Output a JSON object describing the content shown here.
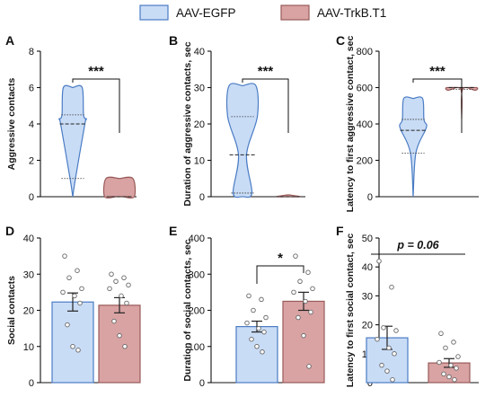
{
  "legend": [
    {
      "label": "AAV-EGFP",
      "fill": "#c9dcf6",
      "stroke": "#4a7cc4"
    },
    {
      "label": "AAV-TrkB.T1",
      "fill": "#d9a3a3",
      "stroke": "#9a5a5a"
    }
  ],
  "chart_data": [
    {
      "panel": "A",
      "type": "violin",
      "ylabel": "Aggressive contacts",
      "ylim": [
        0,
        8
      ],
      "yticks": [
        0,
        2,
        4,
        6,
        8
      ],
      "significance": "***",
      "series": [
        {
          "name": "AAV-EGFP",
          "min": 0,
          "q1": 1.0,
          "median": 4.0,
          "q3": 4.5,
          "max": 6.0
        },
        {
          "name": "AAV-TrkB.T1",
          "min": 0,
          "q1": 0,
          "median": 0,
          "q3": 0,
          "max": 1.0
        }
      ]
    },
    {
      "panel": "B",
      "type": "violin",
      "ylabel": "Duration of aggressive contacts, sec",
      "ylim": [
        0,
        40
      ],
      "yticks": [
        0,
        10,
        20,
        30,
        40
      ],
      "significance": "***",
      "series": [
        {
          "name": "AAV-EGFP",
          "min": 0,
          "q1": 1.0,
          "median": 11.5,
          "q3": 22.0,
          "max": 30.5
        },
        {
          "name": "AAV-TrkB.T1",
          "min": 0,
          "q1": 0,
          "median": 0,
          "q3": 0,
          "max": 0.5
        }
      ]
    },
    {
      "panel": "C",
      "type": "violin",
      "ylabel": "Latency to first aggressive contact, sec",
      "ylim": [
        0,
        800
      ],
      "yticks": [
        0,
        200,
        400,
        600,
        800
      ],
      "significance": "***",
      "series": [
        {
          "name": "AAV-EGFP",
          "min": 0,
          "q1": 240,
          "median": 365,
          "q3": 425,
          "max": 540
        },
        {
          "name": "AAV-TrkB.T1",
          "min": 430,
          "q1": 590,
          "median": 600,
          "q3": 600,
          "max": 600
        }
      ]
    },
    {
      "panel": "D",
      "type": "bar",
      "ylabel": "Social contacts",
      "ylim": [
        0,
        40
      ],
      "yticks": [
        0,
        10,
        20,
        30,
        40
      ],
      "series": [
        {
          "name": "AAV-EGFP",
          "mean": 22.3,
          "sem": 2.5,
          "points": [
            35,
            31,
            29,
            26,
            25,
            24,
            22,
            16,
            10,
            9
          ]
        },
        {
          "name": "AAV-TrkB.T1",
          "mean": 21.4,
          "sem": 2.1,
          "points": [
            30,
            29,
            28,
            27,
            26,
            24,
            22,
            17,
            13,
            10
          ]
        }
      ]
    },
    {
      "panel": "E",
      "type": "bar",
      "ylabel": "Duration of social contacts, sec",
      "ylim": [
        0,
        400
      ],
      "yticks": [
        0,
        100,
        200,
        300,
        400
      ],
      "significance": "*",
      "series": [
        {
          "name": "AAV-EGFP",
          "mean": 155,
          "sem": 15,
          "points": [
            240,
            230,
            200,
            180,
            165,
            150,
            140,
            120,
            100,
            85
          ]
        },
        {
          "name": "AAV-TrkB.T1",
          "mean": 225,
          "sem": 25,
          "points": [
            350,
            305,
            280,
            260,
            250,
            225,
            195,
            180,
            130,
            45
          ]
        }
      ]
    },
    {
      "panel": "F",
      "type": "bar",
      "ylabel": "Latency to first social contact, sec",
      "ylim": [
        0,
        50
      ],
      "yticks": [
        0,
        10,
        20,
        30,
        40,
        50
      ],
      "significance": "p = 0.06",
      "series": [
        {
          "name": "AAV-EGFP",
          "mean": 15.5,
          "sem": 4.0,
          "points": [
            42,
            33,
            19,
            18,
            15,
            12,
            10,
            6,
            4,
            1
          ]
        },
        {
          "name": "AAV-TrkB.T1",
          "mean": 6.8,
          "sem": 1.5,
          "points": [
            17,
            14,
            12,
            9,
            7,
            6,
            5,
            3,
            2,
            1
          ]
        }
      ]
    }
  ]
}
